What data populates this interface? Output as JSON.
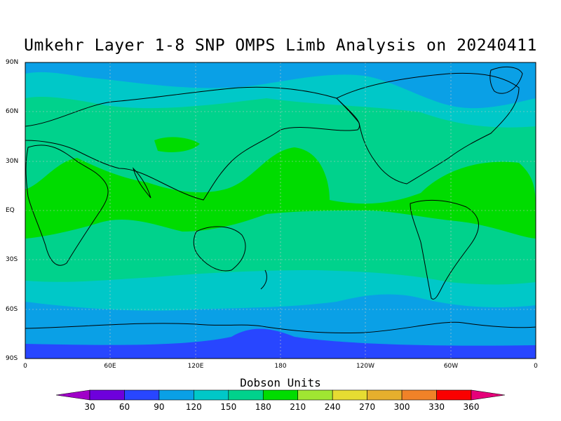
{
  "title": "Umkehr Layer 1-8 SNP OMPS Limb Analysis on 20240411",
  "map": {
    "lat_labels": [
      "90N",
      "60N",
      "30N",
      "EQ",
      "30S",
      "60S",
      "90S"
    ],
    "lon_labels": [
      "0",
      "60E",
      "120E",
      "180",
      "120W",
      "60W",
      "0"
    ]
  },
  "colorbar": {
    "title": "Dobson Units",
    "ticks": [
      "30",
      "60",
      "90",
      "120",
      "150",
      "180",
      "210",
      "240",
      "270",
      "300",
      "330",
      "360"
    ],
    "colors": [
      "#a000c8",
      "#6e00dc",
      "#2846ff",
      "#0aa0e6",
      "#00c8c8",
      "#00d28c",
      "#00dc00",
      "#a0e632",
      "#e6dc32",
      "#e6af2d",
      "#f08228",
      "#fa0000",
      "#e6007a"
    ]
  }
}
